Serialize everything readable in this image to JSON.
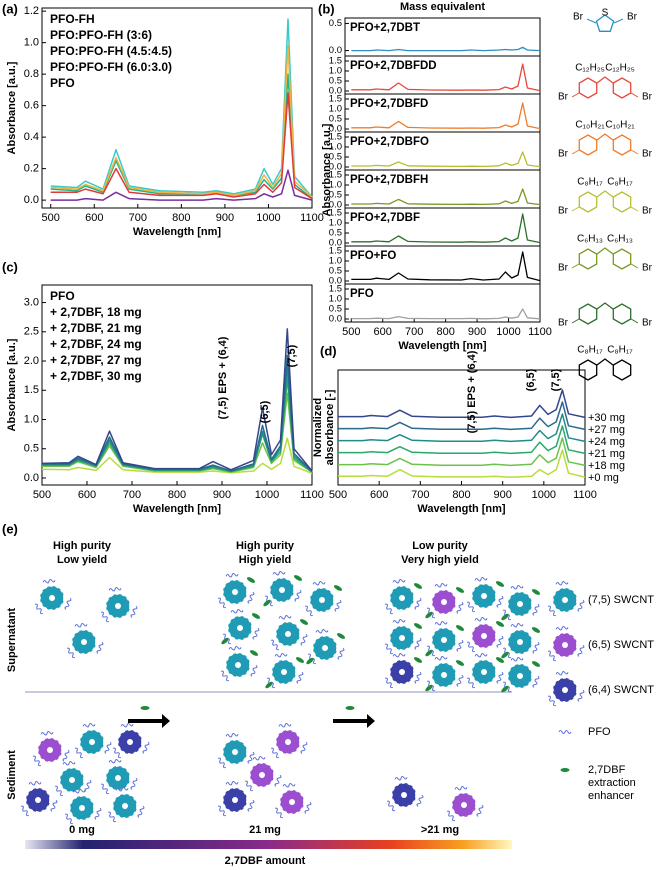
{
  "chart_data": [
    {
      "type": "line",
      "label": "(a)",
      "xlabel": "Wavelength [nm]",
      "ylabel": "Absorbance [a.u.]",
      "x": [
        500,
        560,
        580,
        620,
        650,
        680,
        750,
        850,
        880,
        920,
        970,
        990,
        1010,
        1030,
        1045,
        1060,
        1100
      ],
      "xlim": [
        480,
        1100
      ],
      "xticks": [
        500,
        600,
        700,
        800,
        900,
        1000,
        1100
      ],
      "ylim": [
        -0.05,
        1.22
      ],
      "yticks": [
        {
          "value": 0,
          "label": "0.0"
        },
        0.2,
        0.4,
        0.6,
        0.8,
        {
          "value": 1,
          "label": "1.0"
        },
        1.2
      ],
      "legend": "upper left",
      "series": [
        {
          "name": "PFO-FH",
          "color": "#7b2c9e",
          "values": [
            0,
            0,
            0.01,
            0,
            0.05,
            0.01,
            0,
            0,
            0.01,
            0,
            0.01,
            0.04,
            0.02,
            0.04,
            0.19,
            0.03,
            0
          ]
        },
        {
          "name": "PFO:PFO-FH (3:6)",
          "color": "#3cc9c9",
          "values": [
            0.09,
            0.08,
            0.12,
            0.07,
            0.32,
            0.09,
            0.06,
            0.05,
            0.06,
            0.04,
            0.07,
            0.2,
            0.1,
            0.2,
            1.15,
            0.15,
            0.02
          ]
        },
        {
          "name": "PFO:PFO-FH (4.5:4.5)",
          "color": "#22b58c",
          "values": [
            0.07,
            0.06,
            0.09,
            0.05,
            0.25,
            0.07,
            0.04,
            0.04,
            0.05,
            0.03,
            0.05,
            0.13,
            0.07,
            0.14,
            0.8,
            0.1,
            0.01
          ]
        },
        {
          "name": "PFO:PFO-FH (6.0:3.0)",
          "color": "#f0b43c",
          "values": [
            0.08,
            0.07,
            0.1,
            0.06,
            0.27,
            0.08,
            0.05,
            0.04,
            0.05,
            0.03,
            0.06,
            0.16,
            0.08,
            0.17,
            0.98,
            0.12,
            0.02
          ]
        },
        {
          "name": "PFO",
          "color": "#e03a3a",
          "values": [
            0.05,
            0.05,
            0.07,
            0.04,
            0.2,
            0.05,
            0.03,
            0.03,
            0.04,
            0.02,
            0.04,
            0.1,
            0.05,
            0.11,
            0.68,
            0.08,
            0.01
          ]
        }
      ]
    },
    {
      "type": "panels",
      "label": "(b)",
      "title": "Mass equivalent",
      "xlabel": "Wavelength [nm]",
      "ylabel": "Absorbance [a.u.]",
      "x": [
        500,
        560,
        580,
        620,
        650,
        680,
        750,
        850,
        880,
        920,
        970,
        990,
        1010,
        1030,
        1045,
        1060,
        1100
      ],
      "xlim": [
        480,
        1100
      ],
      "xticks": [
        500,
        600,
        700,
        800,
        900,
        1000,
        1100
      ],
      "facets": [
        {
          "name": "PFO+2,7DBT",
          "color": "#2a8fbf",
          "ylim": [
            -0.1,
            0.6
          ],
          "yticks": [
            {
              "value": 0,
              "label": "0.0"
            },
            0.5
          ],
          "values": [
            0,
            0,
            0.01,
            0,
            0.02,
            0,
            0,
            0,
            0.01,
            0,
            0.01,
            0.02,
            0.01,
            0.02,
            0.06,
            0.01,
            0
          ]
        },
        {
          "name": "PFO+2,7DBFDD",
          "color": "#e8483a",
          "ylim": [
            -0.15,
            1.75
          ],
          "yticks": [
            {
              "value": 0,
              "label": "0.0"
            },
            0.5,
            {
              "value": 1,
              "label": "1.0"
            },
            1.5
          ],
          "values": [
            0.06,
            0.06,
            0.1,
            0.06,
            0.4,
            0.08,
            0.05,
            0.04,
            0.05,
            0.04,
            0.07,
            0.2,
            0.1,
            0.25,
            1.35,
            0.15,
            0.02
          ]
        },
        {
          "name": "PFO+2,7DBFD",
          "color": "#f07c2a",
          "ylim": [
            -0.15,
            1.75
          ],
          "yticks": [
            {
              "value": 0,
              "label": "0.0"
            },
            0.5,
            {
              "value": 1,
              "label": "1.0"
            },
            1.5
          ],
          "values": [
            0.06,
            0.06,
            0.1,
            0.06,
            0.38,
            0.08,
            0.05,
            0.04,
            0.05,
            0.04,
            0.07,
            0.2,
            0.1,
            0.25,
            1.3,
            0.15,
            0.02
          ]
        },
        {
          "name": "PFO+2,7DBFO",
          "color": "#b8bf2e",
          "ylim": [
            -0.15,
            1.75
          ],
          "yticks": [
            {
              "value": 0,
              "label": "0.0"
            },
            0.5,
            {
              "value": 1,
              "label": "1.0"
            },
            1.5
          ],
          "values": [
            0.05,
            0.05,
            0.08,
            0.05,
            0.25,
            0.06,
            0.04,
            0.03,
            0.04,
            0.03,
            0.06,
            0.2,
            0.08,
            0.18,
            0.75,
            0.1,
            0.02
          ]
        },
        {
          "name": "PFO+2,7DBFH",
          "color": "#7a9a22",
          "ylim": [
            -0.15,
            1.75
          ],
          "yticks": [
            {
              "value": 0,
              "label": "0.0"
            },
            0.5,
            {
              "value": 1,
              "label": "1.0"
            },
            1.5
          ],
          "values": [
            0.05,
            0.05,
            0.08,
            0.05,
            0.28,
            0.06,
            0.04,
            0.03,
            0.04,
            0.03,
            0.06,
            0.2,
            0.08,
            0.18,
            0.8,
            0.1,
            0.02
          ]
        },
        {
          "name": "PFO+2,7DBF",
          "color": "#2e6e2e",
          "ylim": [
            -0.15,
            1.75
          ],
          "yticks": [
            {
              "value": 0,
              "label": "0.0"
            },
            0.5,
            {
              "value": 1,
              "label": "1.0"
            },
            1.5
          ],
          "values": [
            0.06,
            0.06,
            0.1,
            0.06,
            0.35,
            0.08,
            0.05,
            0.04,
            0.06,
            0.04,
            0.07,
            0.25,
            0.1,
            0.25,
            1.45,
            0.15,
            0.02
          ]
        },
        {
          "name": "PFO+FO",
          "color": "#000000",
          "ylim": [
            -0.15,
            1.75
          ],
          "yticks": [
            {
              "value": 0,
              "label": "0.0"
            },
            0.5,
            {
              "value": 1,
              "label": "1.0"
            },
            1.5
          ],
          "values": [
            0.08,
            0.08,
            0.14,
            0.08,
            0.4,
            0.1,
            0.06,
            0.05,
            0.12,
            0.05,
            0.1,
            0.45,
            0.15,
            0.3,
            1.45,
            0.18,
            0.02
          ]
        },
        {
          "name": "PFO",
          "color": "#a0a0a0",
          "ylim": [
            -0.15,
            1.75
          ],
          "yticks": [
            {
              "value": 0,
              "label": "0.0"
            },
            0.5,
            {
              "value": 1,
              "label": "1.0"
            },
            1.5
          ],
          "values": [
            0.02,
            0.02,
            0.04,
            0.02,
            0.12,
            0.03,
            0.02,
            0.02,
            0.03,
            0.01,
            0.03,
            0.1,
            0.04,
            0.1,
            0.5,
            0.06,
            0.01
          ]
        }
      ]
    },
    {
      "type": "line",
      "label": "(c)",
      "xlabel": "Wavelength [nm]",
      "ylabel": "Absorbance [a.u.]",
      "x": [
        500,
        560,
        580,
        620,
        650,
        680,
        750,
        850,
        880,
        920,
        970,
        990,
        1010,
        1030,
        1045,
        1060,
        1100
      ],
      "xlim": [
        500,
        1100
      ],
      "xticks": [
        500,
        600,
        700,
        800,
        900,
        1000,
        1100
      ],
      "ylim": [
        -0.12,
        3.3
      ],
      "yticks": [
        {
          "value": 0,
          "label": "0.0"
        },
        0.5,
        {
          "value": 1,
          "label": "1.0"
        },
        1.5,
        {
          "value": 2,
          "label": "2.0"
        },
        2.5,
        {
          "value": 3,
          "label": "3.0"
        }
      ],
      "legend": "upper left",
      "annotations": [
        "(7,5) EPS + (6,4)",
        "(6,5)",
        "(7,5)"
      ],
      "series": [
        {
          "name": "PFO",
          "color": "#b8dc3c",
          "values": [
            0.15,
            0.14,
            0.18,
            0.13,
            0.35,
            0.14,
            0.1,
            0.1,
            0.12,
            0.09,
            0.12,
            0.25,
            0.15,
            0.25,
            0.68,
            0.2,
            0.08
          ]
        },
        {
          "name": "+ 2,7DBF, 18 mg",
          "color": "#6cc24a",
          "values": [
            0.2,
            0.2,
            0.28,
            0.18,
            0.55,
            0.2,
            0.12,
            0.12,
            0.16,
            0.1,
            0.18,
            0.6,
            0.25,
            0.4,
            1.45,
            0.3,
            0.1
          ]
        },
        {
          "name": "+ 2,7DBF, 21 mg",
          "color": "#2aa86c",
          "values": [
            0.22,
            0.22,
            0.3,
            0.2,
            0.6,
            0.22,
            0.13,
            0.13,
            0.18,
            0.11,
            0.2,
            0.75,
            0.28,
            0.45,
            1.7,
            0.34,
            0.1
          ]
        },
        {
          "name": "+ 2,7DBF, 24 mg",
          "color": "#1f8c8a",
          "values": [
            0.23,
            0.23,
            0.32,
            0.21,
            0.65,
            0.23,
            0.14,
            0.14,
            0.2,
            0.12,
            0.22,
            0.8,
            0.3,
            0.5,
            1.9,
            0.38,
            0.11
          ]
        },
        {
          "name": "+ 2,7DBF, 27 mg",
          "color": "#2a6a8c",
          "values": [
            0.24,
            0.24,
            0.34,
            0.22,
            0.7,
            0.24,
            0.15,
            0.15,
            0.22,
            0.12,
            0.24,
            0.9,
            0.32,
            0.55,
            2.1,
            0.42,
            0.11
          ]
        },
        {
          "name": "+ 2,7DBF, 30 mg",
          "color": "#34468c",
          "values": [
            0.25,
            0.26,
            0.37,
            0.23,
            0.8,
            0.26,
            0.16,
            0.16,
            0.28,
            0.14,
            0.3,
            1.2,
            0.4,
            0.65,
            2.55,
            0.5,
            0.12
          ]
        }
      ]
    },
    {
      "type": "offset",
      "label": "(d)",
      "xlabel": "Wavelength [nm]",
      "ylabel_lines": [
        "Normalized",
        "absorbance [-]"
      ],
      "x": [
        500,
        560,
        580,
        620,
        650,
        680,
        750,
        850,
        880,
        920,
        970,
        990,
        1010,
        1030,
        1045,
        1060,
        1100
      ],
      "xlim": [
        500,
        1100
      ],
      "xticks": [
        500,
        600,
        700,
        800,
        900,
        1000,
        1100
      ],
      "annotations": [
        "(7,5) EPS + (6,4)",
        "(6,5)",
        "(7,5)"
      ],
      "series": [
        {
          "name": "+30 mg",
          "color": "#34468c",
          "values": [
            0.05,
            0.05,
            0.09,
            0.05,
            0.28,
            0.06,
            0.03,
            0.03,
            0.07,
            0.02,
            0.07,
            0.45,
            0.13,
            0.3,
            1.0,
            0.15,
            0.02
          ]
        },
        {
          "name": "+27 mg",
          "color": "#2a6a8c",
          "values": [
            0.05,
            0.05,
            0.08,
            0.05,
            0.27,
            0.06,
            0.03,
            0.03,
            0.06,
            0.02,
            0.06,
            0.42,
            0.12,
            0.29,
            1.0,
            0.15,
            0.02
          ]
        },
        {
          "name": "+24 mg",
          "color": "#1f8c8a",
          "values": [
            0.05,
            0.05,
            0.08,
            0.05,
            0.26,
            0.06,
            0.03,
            0.03,
            0.06,
            0.02,
            0.06,
            0.41,
            0.12,
            0.29,
            1.0,
            0.15,
            0.02
          ]
        },
        {
          "name": "+21 mg",
          "color": "#2aa86c",
          "values": [
            0.05,
            0.05,
            0.08,
            0.05,
            0.26,
            0.06,
            0.03,
            0.03,
            0.06,
            0.02,
            0.06,
            0.42,
            0.12,
            0.28,
            1.0,
            0.15,
            0.02
          ]
        },
        {
          "name": "+18 mg",
          "color": "#6cc24a",
          "values": [
            0.05,
            0.05,
            0.08,
            0.05,
            0.27,
            0.06,
            0.03,
            0.03,
            0.06,
            0.02,
            0.06,
            0.4,
            0.12,
            0.28,
            1.0,
            0.15,
            0.02
          ]
        },
        {
          "name": "+0 mg",
          "color": "#b8dc3c",
          "values": [
            0.06,
            0.06,
            0.09,
            0.06,
            0.3,
            0.07,
            0.04,
            0.04,
            0.06,
            0.03,
            0.06,
            0.3,
            0.12,
            0.3,
            1.0,
            0.17,
            0.03
          ]
        }
      ]
    }
  ],
  "structures": [
    {
      "kind": "thiophene",
      "color": "#2a8fbf",
      "heteroatom": "S",
      "ends": [
        "Br",
        "Br"
      ]
    },
    {
      "kind": "fluorene",
      "color": "#e8483a",
      "substituents": [
        "C₁₂H₂₅",
        "C₁₂H₂₅"
      ],
      "ends": [
        "Br",
        "Br"
      ]
    },
    {
      "kind": "fluorene",
      "color": "#f07c2a",
      "substituents": [
        "C₁₀H₂₁",
        "C₁₀H₂₁"
      ],
      "ends": [
        "Br",
        "Br"
      ]
    },
    {
      "kind": "fluorene",
      "color": "#b8bf2e",
      "substituents": [
        "C₈H₁₇",
        "C₈H₁₇"
      ],
      "ends": [
        "Br",
        "Br"
      ]
    },
    {
      "kind": "fluorene",
      "color": "#7a9a22",
      "substituents": [
        "C₆H₁₃",
        "C₆H₁₃"
      ],
      "ends": [
        "Br",
        "Br"
      ]
    },
    {
      "kind": "fluorene",
      "color": "#2e6e2e",
      "ends": [
        "Br",
        "Br"
      ]
    },
    {
      "kind": "fluorene",
      "color": "#000000",
      "substituents": [
        "C₈H₁₇",
        "C₈H₁₇"
      ]
    }
  ],
  "diagram": {
    "label": "(e)",
    "stages": [
      {
        "purity": "High purity",
        "yield": "Low yield",
        "amount": "0 mg"
      },
      {
        "purity": "High purity",
        "yield": "High yield",
        "amount": "21 mg"
      },
      {
        "purity": "Low purity",
        "yield": "Very high yield",
        "amount": ">21 mg"
      }
    ],
    "phases": [
      "Supernatant",
      "Sediment"
    ],
    "legend": [
      {
        "label": "(7,5) SWCNT",
        "color": "#1f9bb5"
      },
      {
        "label": "(6,5) SWCNT",
        "color": "#9b4fd0"
      },
      {
        "label": "(6,4) SWCNT",
        "color": "#3b3fa8"
      },
      {
        "label": "PFO",
        "color": "#5a6fd8"
      },
      {
        "label_lines": [
          "2,7DBF",
          "extraction",
          "enhancer"
        ],
        "color": "#1f8a3a"
      }
    ],
    "amount_label": "2,7DBF amount"
  }
}
